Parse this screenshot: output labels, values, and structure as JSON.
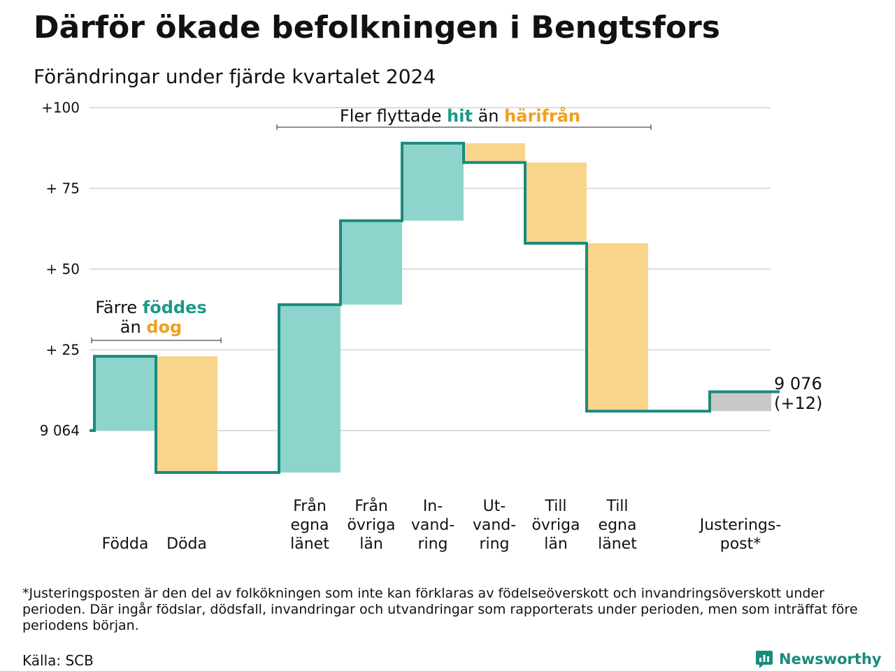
{
  "title": "Därför ökade befolkningen i Bengtsfors",
  "subtitle": "Förändringar under fjärde kvartalet 2024",
  "colors": {
    "in_fill": "#8dd5cc",
    "out_fill": "#f9d58c",
    "adjust_fill": "#c8c8c8",
    "line": "#1a8a7d",
    "hit": "#1a9a8a",
    "harifran": "#f0a020",
    "grid": "#dddddd"
  },
  "chart_data": {
    "type": "waterfall",
    "start_population": 9064,
    "end_population": 9076,
    "ylim": [
      -13,
      100
    ],
    "yticks": [
      {
        "value": 0,
        "label": "9 064"
      },
      {
        "value": 25,
        "label": "+ 25"
      },
      {
        "value": 50,
        "label": "+ 50"
      },
      {
        "value": 75,
        "label": "+ 75"
      },
      {
        "value": 100,
        "label": "+100"
      }
    ],
    "steps": [
      {
        "key": "fodda",
        "label_lines": [
          "Födda"
        ],
        "change": 23,
        "kind": "in"
      },
      {
        "key": "doda",
        "label_lines": [
          "Döda"
        ],
        "change": -36,
        "kind": "out"
      },
      {
        "key": "gap",
        "label_lines": [],
        "change": 0,
        "kind": "none"
      },
      {
        "key": "fran_egna",
        "label_lines": [
          "Från",
          "egna",
          "länet"
        ],
        "change": 52,
        "kind": "in"
      },
      {
        "key": "fran_ovriga",
        "label_lines": [
          "Från",
          "övriga",
          "län"
        ],
        "change": 26,
        "kind": "in"
      },
      {
        "key": "invandring",
        "label_lines": [
          "In-",
          "vand-",
          "ring"
        ],
        "change": 24,
        "kind": "in"
      },
      {
        "key": "utvandring",
        "label_lines": [
          "Ut-",
          "vand-",
          "ring"
        ],
        "change": -6,
        "kind": "out"
      },
      {
        "key": "till_ovriga",
        "label_lines": [
          "Till",
          "övriga",
          "län"
        ],
        "change": -25,
        "kind": "out"
      },
      {
        "key": "till_egna",
        "label_lines": [
          "Till",
          "egna",
          "länet"
        ],
        "change": -52,
        "kind": "out"
      },
      {
        "key": "gap2",
        "label_lines": [],
        "change": 0,
        "kind": "none"
      },
      {
        "key": "justering",
        "label_lines": [
          "Justerings-",
          "post*"
        ],
        "change": 6,
        "kind": "adjust"
      }
    ],
    "end_label": {
      "line1": "9 076",
      "line2": "(+12)"
    },
    "annotations": {
      "births": {
        "line1": "Färre",
        "line1_strong": "föddes",
        "line2": "än",
        "line2_strong": "dog"
      },
      "migration": {
        "text": "Fler flyttade",
        "strong1": "hit",
        "middle": "än",
        "strong2": "härifrån"
      }
    }
  },
  "footnote": "*Justeringsposten är den del av folkökningen som inte kan förklaras av födelseöverskott och invandringsöverskott under perioden. Där ingår födslar, dödsfall, invandringar och utvandringar som rapporterats under perioden, men som inträffat före periodens början.",
  "source": "Källa: SCB",
  "brand": "Newsworthy"
}
